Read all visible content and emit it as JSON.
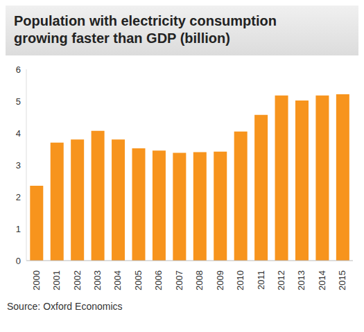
{
  "chart_data": {
    "type": "bar",
    "title": "Population with electricity consumption growing faster than GDP (billion)",
    "source": "Source: Oxford Economics",
    "categories": [
      "2000",
      "2001",
      "2002",
      "2003",
      "2004",
      "2005",
      "2006",
      "2007",
      "2008",
      "2009",
      "2010",
      "2011",
      "2012",
      "2013",
      "2014",
      "2015"
    ],
    "values": [
      2.35,
      3.7,
      3.8,
      4.07,
      3.8,
      3.52,
      3.45,
      3.38,
      3.4,
      3.42,
      4.05,
      4.57,
      5.18,
      5.02,
      5.18,
      5.22
    ],
    "color": "#f7941d",
    "ylim": [
      0,
      6
    ],
    "yticks": [
      0,
      1,
      2,
      3,
      4,
      5,
      6
    ],
    "grid": false
  }
}
